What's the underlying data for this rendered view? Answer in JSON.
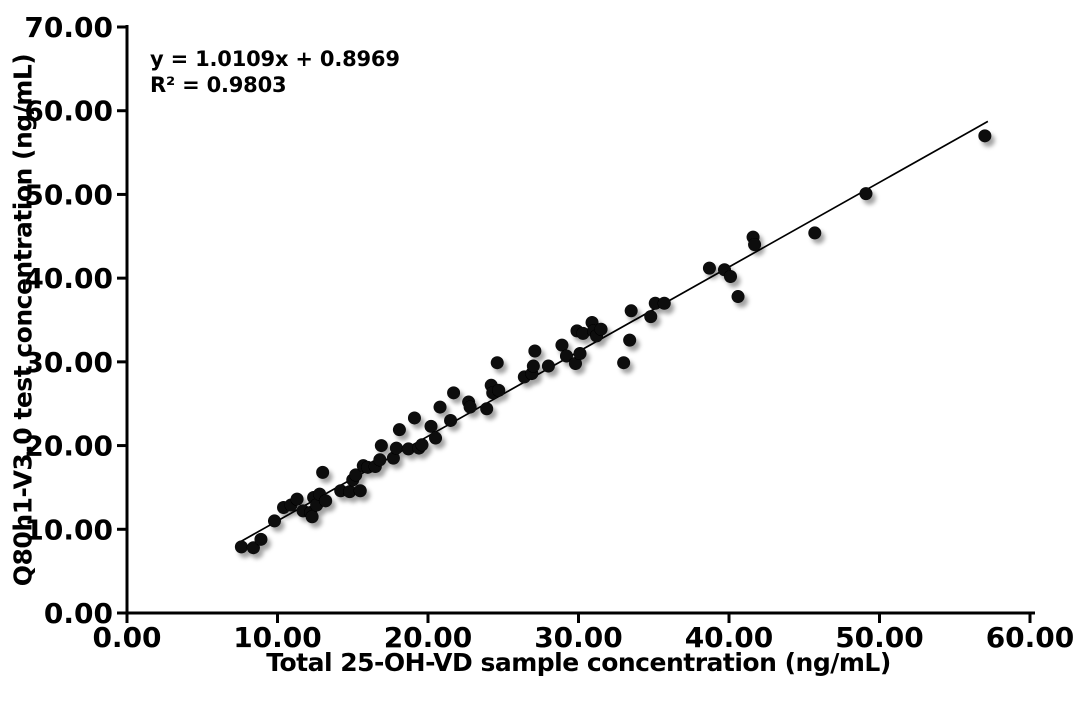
{
  "colors": {
    "background": "#ffffff",
    "axis": "#000000",
    "text": "#000000",
    "point": "#070707",
    "trendline": "#000000"
  },
  "chart_data": {
    "type": "scatter",
    "xlabel": "Total 25-OH-VD sample concentration (ng/mL)",
    "ylabel": "Q80h1-V3.0 test concentration (ng/mL)",
    "xlim": [
      0,
      60
    ],
    "ylim": [
      0,
      70
    ],
    "x_tick_values": [
      0,
      10,
      20,
      30,
      40,
      50,
      60
    ],
    "x_tick_labels": [
      "0.00",
      "10.00",
      "20.00",
      "30.00",
      "40.00",
      "50.00",
      "60.00"
    ],
    "y_tick_values": [
      0,
      10,
      20,
      30,
      40,
      50,
      60,
      70
    ],
    "y_tick_labels": [
      "0.00",
      "10.00",
      "20.00",
      "30.00",
      "40.00",
      "50.00",
      "60.00",
      "70.00"
    ],
    "grid": false,
    "legend_position": "none",
    "annotation": {
      "equation": "y = 1.0109x + 0.8969",
      "r_squared": "R² = 0.9803"
    },
    "trendline": {
      "slope": 1.0109,
      "intercept": 0.8969,
      "x_start": 7.55,
      "x_end": 57.2
    },
    "point_style": {
      "radius": 6.5,
      "shadow": true
    },
    "points": [
      [
        7.6,
        7.9
      ],
      [
        8.4,
        7.8
      ],
      [
        8.9,
        8.8
      ],
      [
        9.8,
        11.0
      ],
      [
        10.4,
        12.6
      ],
      [
        10.9,
        12.9
      ],
      [
        11.3,
        13.6
      ],
      [
        11.7,
        12.2
      ],
      [
        12.2,
        12.0
      ],
      [
        12.3,
        11.5
      ],
      [
        12.4,
        13.8
      ],
      [
        12.6,
        12.9
      ],
      [
        12.8,
        14.2
      ],
      [
        13.0,
        16.8
      ],
      [
        13.2,
        13.4
      ],
      [
        14.2,
        14.6
      ],
      [
        14.8,
        14.5
      ],
      [
        15.0,
        15.9
      ],
      [
        15.2,
        16.5
      ],
      [
        15.5,
        14.6
      ],
      [
        15.7,
        17.6
      ],
      [
        16.0,
        17.4
      ],
      [
        16.5,
        17.5
      ],
      [
        16.8,
        18.3
      ],
      [
        16.9,
        20.0
      ],
      [
        17.7,
        18.5
      ],
      [
        17.9,
        19.7
      ],
      [
        18.1,
        21.9
      ],
      [
        18.7,
        19.6
      ],
      [
        19.1,
        23.3
      ],
      [
        19.4,
        19.7
      ],
      [
        19.6,
        20.1
      ],
      [
        20.2,
        22.3
      ],
      [
        20.5,
        20.9
      ],
      [
        20.8,
        24.6
      ],
      [
        21.5,
        23.0
      ],
      [
        21.7,
        26.3
      ],
      [
        22.7,
        25.2
      ],
      [
        22.8,
        24.6
      ],
      [
        23.9,
        24.4
      ],
      [
        24.2,
        27.2
      ],
      [
        24.3,
        26.3
      ],
      [
        24.6,
        29.9
      ],
      [
        24.7,
        26.6
      ],
      [
        26.4,
        28.2
      ],
      [
        26.9,
        28.6
      ],
      [
        27.0,
        29.5
      ],
      [
        27.1,
        31.3
      ],
      [
        28.0,
        29.5
      ],
      [
        28.9,
        32.0
      ],
      [
        29.2,
        30.7
      ],
      [
        29.8,
        29.8
      ],
      [
        29.9,
        33.7
      ],
      [
        30.1,
        31.0
      ],
      [
        30.3,
        33.4
      ],
      [
        30.9,
        34.7
      ],
      [
        31.0,
        33.7
      ],
      [
        31.2,
        33.1
      ],
      [
        31.5,
        33.9
      ],
      [
        33.0,
        29.9
      ],
      [
        33.4,
        32.6
      ],
      [
        33.5,
        36.1
      ],
      [
        34.8,
        35.4
      ],
      [
        35.1,
        37.0
      ],
      [
        35.7,
        37.0
      ],
      [
        38.7,
        41.2
      ],
      [
        39.7,
        41.0
      ],
      [
        40.1,
        40.2
      ],
      [
        40.6,
        37.8
      ],
      [
        41.6,
        44.9
      ],
      [
        41.7,
        44.0
      ],
      [
        45.7,
        45.4
      ],
      [
        49.1,
        50.1
      ],
      [
        57.0,
        57.0
      ]
    ]
  }
}
